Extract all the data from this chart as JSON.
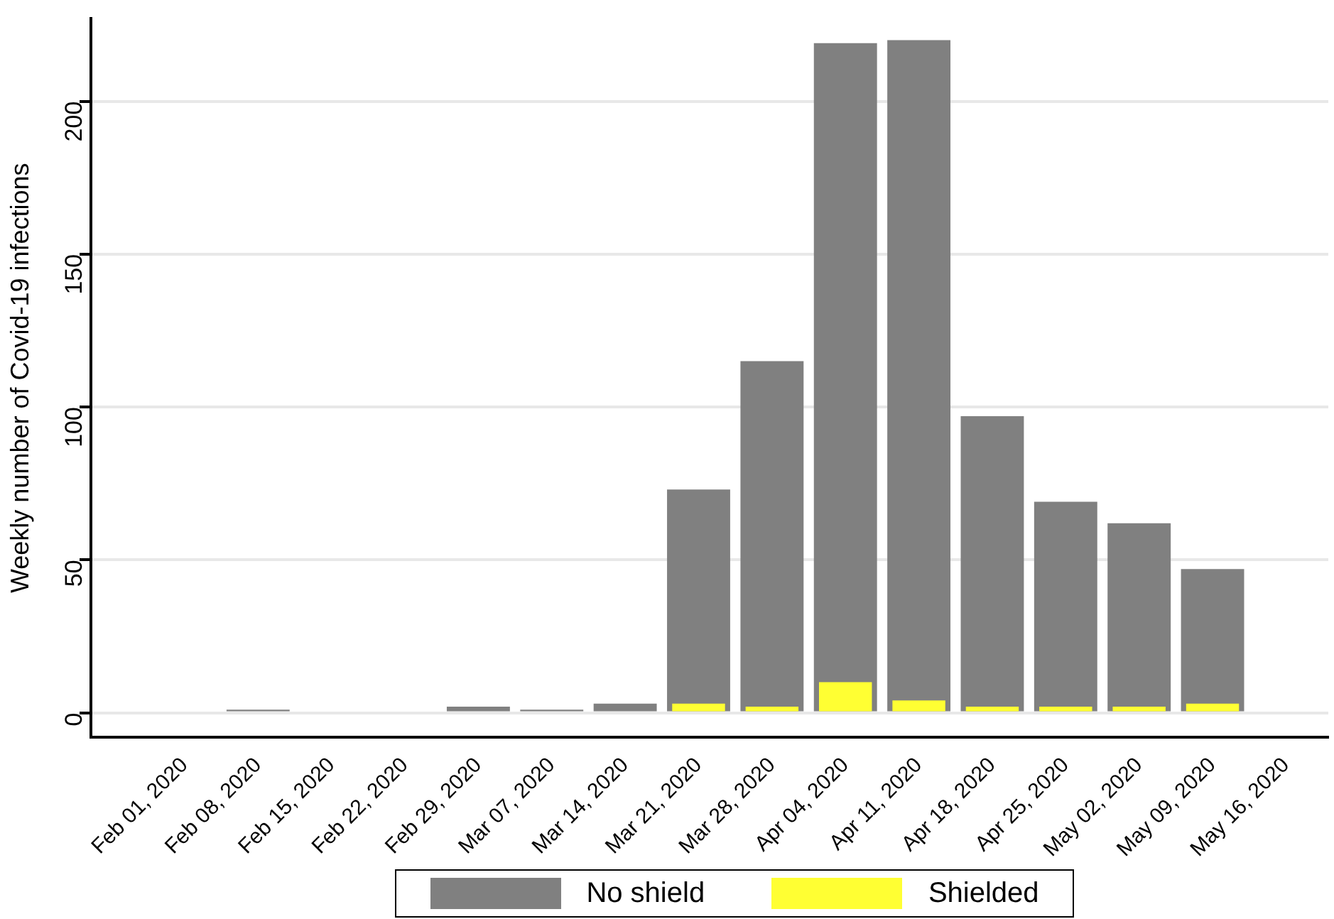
{
  "chart_data": {
    "type": "bar",
    "ylabel": "Weekly number of Covid-19 infections",
    "categories": [
      "Feb 01, 2020",
      "Feb 08, 2020",
      "Feb 15, 2020",
      "Feb 22, 2020",
      "Feb 29, 2020",
      "Mar 07, 2020",
      "Mar 14, 2020",
      "Mar 21, 2020",
      "Mar 28, 2020",
      "Apr 04, 2020",
      "Apr 11, 2020",
      "Apr 18, 2020",
      "Apr 25, 2020",
      "May 02, 2020",
      "May 09, 2020",
      "May 16, 2020"
    ],
    "series": [
      {
        "name": "No shield",
        "color": "#808080",
        "values": [
          0,
          1,
          0,
          0,
          2,
          1,
          3,
          73,
          115,
          219,
          220,
          97,
          69,
          62,
          47,
          0
        ]
      },
      {
        "name": "Shielded",
        "color": "#ffff33",
        "values": [
          0,
          0,
          0,
          0,
          0,
          0,
          0,
          3,
          2,
          10,
          4,
          2,
          2,
          2,
          3,
          0
        ]
      }
    ],
    "ylim": [
      -8,
      227
    ],
    "yticks": [
      0,
      50,
      100,
      150,
      200
    ],
    "grid": "y",
    "legend": "bottom"
  }
}
